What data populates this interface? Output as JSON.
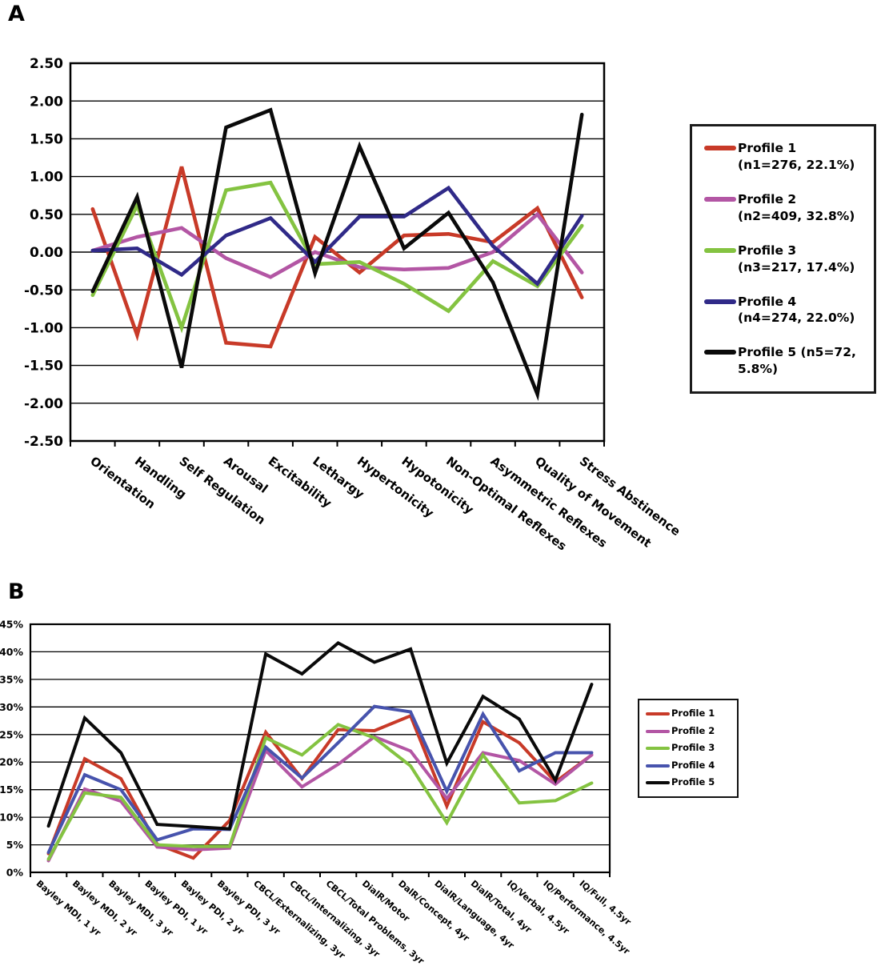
{
  "page": {
    "panel_a_label": "A",
    "panel_b_label": "B"
  },
  "colors": {
    "profile1_red": "#c83a28",
    "profile2_purple": "#b356a4",
    "profile3_green": "#84c341",
    "profile4_navy": "#302a88",
    "profile4_blue": "#4753ad",
    "profile5_black": "#0a0a0a",
    "axis": "#000000",
    "background": "#ffffff"
  },
  "chart_data": [
    {
      "id": "A",
      "type": "line",
      "title": "",
      "xlabel": "",
      "ylabel": "",
      "ylim": [
        -2.5,
        2.5
      ],
      "ytick_step": 0.5,
      "grid": true,
      "legend_position": "right",
      "ytick_labels": [
        "2.50",
        "2.00",
        "1.50",
        "1.00",
        "0.50",
        "0.00",
        "-0.50",
        "-1.00",
        "-1.50",
        "-2.00",
        "-2.50"
      ],
      "categories": [
        "Orientation",
        "Handling",
        "Self Regulation",
        "Arousal",
        "Excitability",
        "Lethargy",
        "Hypertonicity",
        "Hypotonicity",
        "Non-Optimal Reflexes",
        "Asymmetric Reflexes",
        "Quality of Movement",
        "Stress Abstinence"
      ],
      "series": [
        {
          "name": "Profile 1",
          "legend": "Profile 1 (n1=276, 22.1%)",
          "color": "#c83a28",
          "values": [
            0.57,
            -1.1,
            1.13,
            -1.2,
            -1.25,
            0.2,
            -0.27,
            0.22,
            0.24,
            0.13,
            0.58,
            -0.6
          ]
        },
        {
          "name": "Profile 2",
          "legend": "Profile 2 (n2=409, 32.8%)",
          "color": "#b356a4",
          "values": [
            0.02,
            0.2,
            0.32,
            -0.08,
            -0.33,
            0.0,
            -0.2,
            -0.23,
            -0.21,
            0.0,
            0.5,
            -0.27
          ]
        },
        {
          "name": "Profile 3",
          "legend": "Profile 3 (n3=217, 17.4%)",
          "color": "#84c341",
          "values": [
            -0.57,
            0.62,
            -1.0,
            0.82,
            0.92,
            -0.16,
            -0.13,
            -0.42,
            -0.78,
            -0.12,
            -0.45,
            0.35
          ]
        },
        {
          "name": "Profile 4",
          "legend": "Profile 4 (n4=274, 22.0%)",
          "color": "#302a88",
          "values": [
            0.02,
            0.05,
            -0.3,
            0.22,
            0.45,
            -0.13,
            0.47,
            0.47,
            0.85,
            0.08,
            -0.42,
            0.48
          ]
        },
        {
          "name": "Profile 5",
          "legend": "Profile 5 (n5=72, 5.8%)",
          "color": "#0a0a0a",
          "values": [
            -0.52,
            0.73,
            -1.53,
            1.65,
            1.88,
            -0.28,
            1.4,
            0.05,
            0.52,
            -0.4,
            -1.88,
            1.82
          ]
        }
      ]
    },
    {
      "id": "B",
      "type": "line",
      "title": "",
      "xlabel": "",
      "ylabel": "",
      "ylim": [
        0,
        45
      ],
      "ytick_step": 5,
      "grid": true,
      "legend_position": "right",
      "ytick_labels": [
        "45%",
        "40%",
        "35%",
        "30%",
        "25%",
        "20%",
        "15%",
        "10%",
        "5%",
        "0%"
      ],
      "categories": [
        "Bayley MDI, 1 yr",
        "Bayley MDI, 2 yr",
        "Bayley MDI, 3 yr",
        "Bayley PDI, 1 yr",
        "Bayley PDI, 2 yr",
        "Bayley PDI, 3 yr",
        "CBCL/Externalizing, 3yr",
        "CBCL/Internalizing, 3yr",
        "CBCL/Total Problems, 3yr",
        "DialR/Motor",
        "DalR/Concept, 4yr",
        "DialR/Language, 4yr",
        "DialR/Total, 4yr",
        "IQ/Verbal, 4.5yr",
        "IQ/Performance, 4.5yr",
        "IQ/Full, 4.5yr"
      ],
      "series": [
        {
          "name": "Profile 1",
          "legend": "Profile 1",
          "color": "#c83a28",
          "values": [
            3.4,
            20.6,
            17.0,
            5.1,
            2.6,
            9.4,
            25.4,
            17.0,
            25.9,
            25.7,
            28.4,
            12.0,
            27.3,
            23.5,
            16.4,
            21.3
          ]
        },
        {
          "name": "Profile 2",
          "legend": "Profile 2",
          "color": "#b356a4",
          "values": [
            2.1,
            15.1,
            12.9,
            4.6,
            4.1,
            4.4,
            22.1,
            15.5,
            19.6,
            24.6,
            22.0,
            13.4,
            21.7,
            20.3,
            16.0,
            21.3
          ]
        },
        {
          "name": "Profile 3",
          "legend": "Profile 3",
          "color": "#84c341",
          "values": [
            2.4,
            14.4,
            13.6,
            5.0,
            4.7,
            4.7,
            24.4,
            21.3,
            26.8,
            24.4,
            19.3,
            9.0,
            21.3,
            12.6,
            13.0,
            16.2
          ]
        },
        {
          "name": "Profile 4",
          "legend": "Profile 4",
          "color": "#4753ad",
          "values": [
            3.6,
            17.7,
            15.0,
            5.9,
            7.9,
            7.8,
            22.7,
            17.1,
            23.5,
            30.1,
            29.1,
            14.7,
            28.7,
            18.4,
            21.7,
            21.7
          ]
        },
        {
          "name": "Profile 5",
          "legend": "Profile 5",
          "color": "#0a0a0a",
          "values": [
            8.4,
            28.0,
            21.7,
            8.7,
            8.3,
            7.9,
            39.6,
            36.0,
            41.6,
            38.1,
            40.5,
            19.8,
            31.9,
            27.8,
            16.7,
            34.1
          ]
        }
      ]
    }
  ]
}
